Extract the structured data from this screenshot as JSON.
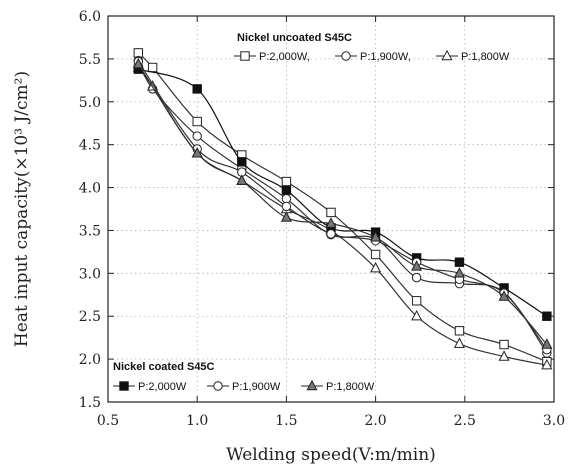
{
  "chart_data": {
    "type": "line",
    "xlabel": "Welding speed(V:m/min)",
    "ylabel": "Heat input capacity(×10³ J/cm²)",
    "xlim": [
      0.5,
      3.0
    ],
    "ylim": [
      1.5,
      6.0
    ],
    "xticks": [
      "0.5",
      "1.0",
      "1.5",
      "2.0",
      "2.5",
      "3.0"
    ],
    "yticks": [
      "1.5",
      "2.0",
      "2.5",
      "3.0",
      "3.5",
      "4.0",
      "4.5",
      "5.0",
      "5.5",
      "6.0"
    ],
    "grid": true,
    "legends": [
      {
        "title": "Nickel uncoated S45C",
        "placement": "top-right",
        "entries": [
          "P:2,000W,",
          "P:1,900W,",
          "P:1,800W"
        ]
      },
      {
        "title": "Nickel coated S45C",
        "placement": "bottom-left",
        "entries": [
          "P:2,000W",
          "P:1,900W",
          "P:1,800W"
        ]
      }
    ],
    "x": [
      0.67,
      0.75,
      1.0,
      1.25,
      1.5,
      1.75,
      2.0,
      2.23,
      2.47,
      2.72,
      2.96
    ],
    "series": [
      {
        "name": "P:2,000W,",
        "group": "Nickel uncoated S45C",
        "marker": "square-open",
        "color": "#333333",
        "values": [
          5.57,
          5.4,
          4.77,
          4.38,
          4.07,
          3.71,
          3.22,
          2.68,
          2.33,
          2.17,
          1.97
        ]
      },
      {
        "name": "P:1,900W,",
        "group": "Nickel uncoated S45C",
        "marker": "circle-open",
        "color": "#333333",
        "values": [
          5.48,
          5.15,
          4.6,
          4.22,
          3.87,
          3.45,
          3.4,
          2.95,
          2.88,
          2.78,
          2.07
        ]
      },
      {
        "name": "P:1,800W",
        "group": "Nickel uncoated S45C",
        "marker": "triangle-open",
        "color": "#333333",
        "values": [
          5.4,
          5.18,
          4.4,
          4.08,
          3.75,
          3.5,
          3.06,
          2.5,
          2.18,
          2.03,
          1.93
        ]
      },
      {
        "name": "P:2,000W",
        "group": "Nickel coated S45C",
        "marker": "square-filled",
        "color": "#111111",
        "values": [
          5.38,
          null,
          5.15,
          4.3,
          3.97,
          3.53,
          3.48,
          3.18,
          3.13,
          2.83,
          2.5
        ]
      },
      {
        "name": "P:1,900W",
        "group": "Nickel coated S45C",
        "marker": "circle-open",
        "color": "#333333",
        "values": [
          5.47,
          null,
          4.45,
          4.18,
          3.78,
          3.46,
          3.38,
          3.13,
          2.93,
          2.77,
          2.11
        ]
      },
      {
        "name": "P:1,800W",
        "group": "Nickel coated S45C",
        "marker": "triangle-gray",
        "color": "#333333",
        "values": [
          5.44,
          null,
          4.4,
          4.08,
          3.65,
          3.58,
          3.42,
          3.08,
          3.0,
          2.73,
          2.17
        ]
      }
    ]
  }
}
